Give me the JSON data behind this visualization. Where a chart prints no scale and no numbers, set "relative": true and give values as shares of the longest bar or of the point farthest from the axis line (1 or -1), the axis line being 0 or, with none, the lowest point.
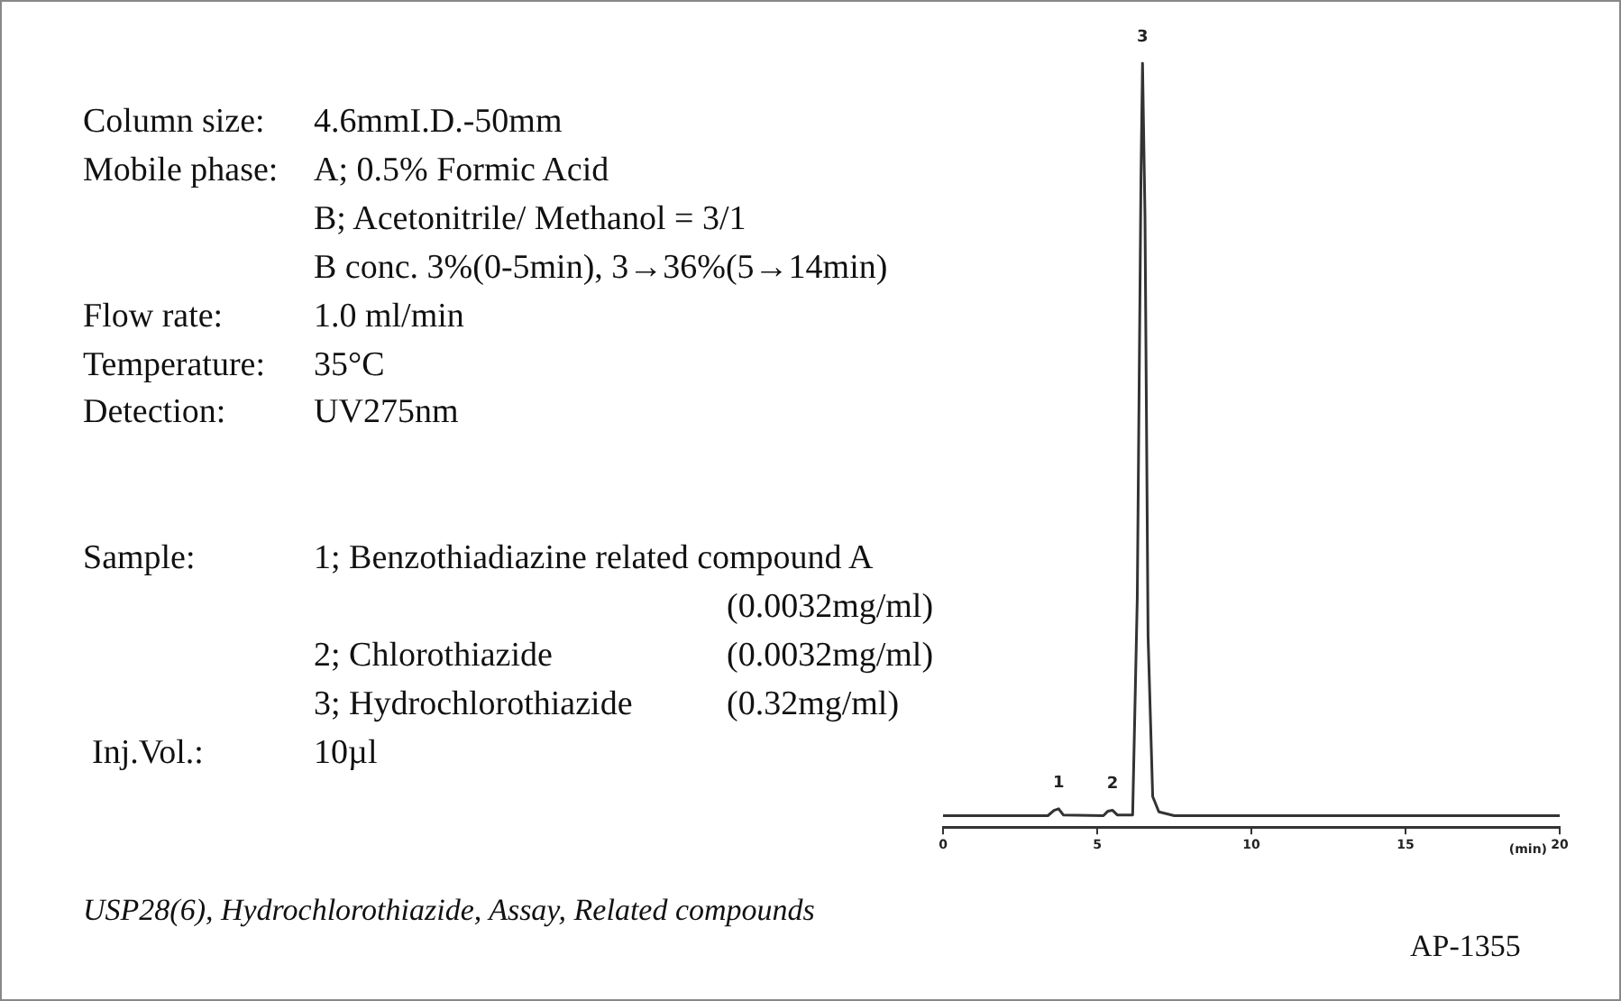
{
  "chart_data": {
    "type": "line",
    "relative": true,
    "xlabel": "(min)",
    "xlim": [
      0,
      20
    ],
    "xticks": [
      0,
      5,
      10,
      15,
      20
    ],
    "marker": "none",
    "color": "#333333",
    "x": [
      0,
      3.4,
      3.6,
      3.75,
      3.9,
      5.2,
      5.35,
      5.5,
      5.65,
      6.15,
      6.3,
      6.42,
      6.47,
      6.55,
      6.65,
      6.8,
      7.0,
      7.5,
      20
    ],
    "values": [
      0.015,
      0.015,
      0.022,
      0.024,
      0.016,
      0.015,
      0.021,
      0.022,
      0.016,
      0.016,
      0.3,
      0.85,
      1,
      0.8,
      0.25,
      0.04,
      0.02,
      0.015,
      0.015
    ],
    "annotations": [
      "Column size:",
      "4.6mmI.D.-50mm",
      "Mobile phase:",
      "A; 0.5% Formic Acid",
      "B; Acetonitrile/ Methanol = 3/1",
      "B conc. 3%(0-5min), 3→36%(5→14min)",
      "Flow rate:",
      "1.0 ml/min",
      "Temperature:",
      "35°C",
      "Detection:",
      "UV275nm",
      "Sample:",
      "1; Benzothiadiazine related compound A",
      "(0.0032mg/ml)",
      "2; Chlorothiazide",
      "(0.0032mg/ml)",
      "3; Hydrochlorothiazide",
      "(0.32mg/ml)",
      "Inj.Vol.:",
      "10µl",
      "USP28(6), Hydrochlorothiazide, Assay, Related compounds",
      "AP-1355",
      {
        "text": "1",
        "x": 3.75,
        "y": 0.024
      },
      {
        "text": "2",
        "x": 5.5,
        "y": 0.022
      },
      {
        "text": "3",
        "x": 6.47,
        "y": 1
      }
    ]
  }
}
